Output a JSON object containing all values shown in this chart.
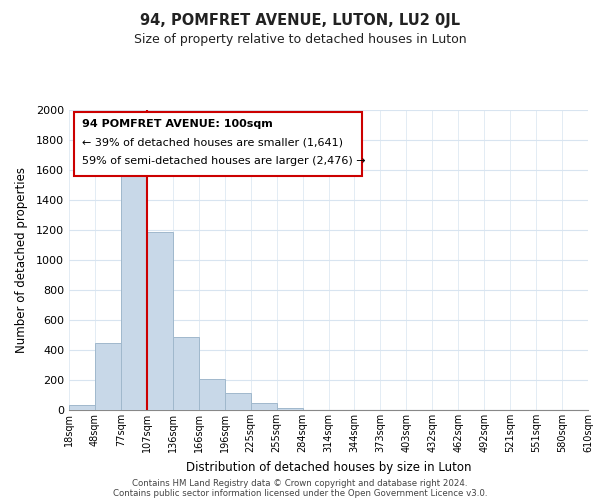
{
  "title": "94, POMFRET AVENUE, LUTON, LU2 0JL",
  "subtitle": "Size of property relative to detached houses in Luton",
  "xlabel": "Distribution of detached houses by size in Luton",
  "ylabel": "Number of detached properties",
  "footer_lines": [
    "Contains HM Land Registry data © Crown copyright and database right 2024.",
    "Contains public sector information licensed under the Open Government Licence v3.0."
  ],
  "bin_labels": [
    "18sqm",
    "48sqm",
    "77sqm",
    "107sqm",
    "136sqm",
    "166sqm",
    "196sqm",
    "225sqm",
    "255sqm",
    "284sqm",
    "314sqm",
    "344sqm",
    "373sqm",
    "403sqm",
    "432sqm",
    "462sqm",
    "492sqm",
    "521sqm",
    "551sqm",
    "580sqm",
    "610sqm"
  ],
  "bar_values": [
    35,
    450,
    1600,
    1190,
    490,
    210,
    115,
    45,
    15,
    0,
    0,
    0,
    0,
    0,
    0,
    0,
    0,
    0,
    0,
    0
  ],
  "bar_color": "#c8d8e8",
  "bar_edge_color": "#a0b8cc",
  "vline_x": 3,
  "vline_color": "#cc0000",
  "ylim": [
    0,
    2000
  ],
  "yticks": [
    0,
    200,
    400,
    600,
    800,
    1000,
    1200,
    1400,
    1600,
    1800,
    2000
  ],
  "annotation_title": "94 POMFRET AVENUE: 100sqm",
  "annotation_line1": "← 39% of detached houses are smaller (1,641)",
  "annotation_line2": "59% of semi-detached houses are larger (2,476) →",
  "background_color": "#ffffff",
  "grid_color": "#d8e4f0"
}
